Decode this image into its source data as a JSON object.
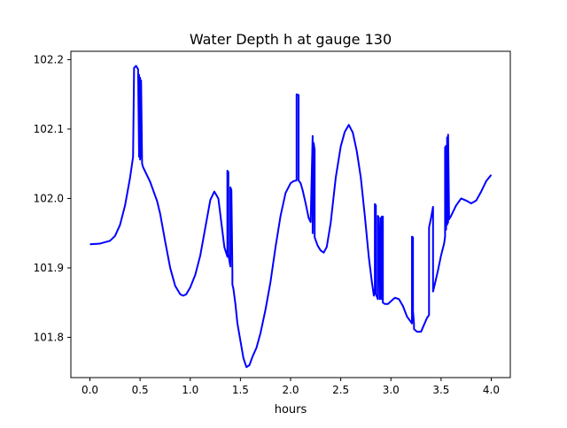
{
  "chart_data": {
    "type": "line",
    "title": "Water Depth h at gauge 130",
    "xlabel": "hours",
    "ylabel": "",
    "xlim": [
      -0.19,
      4.19
    ],
    "ylim": [
      101.742,
      102.212
    ],
    "xticks": [
      0.0,
      0.5,
      1.0,
      1.5,
      2.0,
      2.5,
      3.0,
      3.5,
      4.0
    ],
    "xtick_labels": [
      "0.0",
      "0.5",
      "1.0",
      "1.5",
      "2.0",
      "2.5",
      "3.0",
      "3.5",
      "4.0"
    ],
    "yticks": [
      101.8,
      101.9,
      102.0,
      102.1,
      102.2
    ],
    "ytick_labels": [
      "101.8",
      "101.9",
      "102.0",
      "102.1",
      "102.2"
    ],
    "grid": false,
    "legend": "none",
    "series": [
      {
        "color": "#0000ff",
        "x": [
          0.0,
          0.1,
          0.2,
          0.25,
          0.3,
          0.35,
          0.4,
          0.43,
          0.44,
          0.44,
          0.46,
          0.48,
          0.49,
          0.49,
          0.5,
          0.5,
          0.51,
          0.51,
          0.52,
          0.52,
          0.53,
          0.6,
          0.67,
          0.7,
          0.75,
          0.8,
          0.85,
          0.9,
          0.93,
          0.96,
          1.0,
          1.05,
          1.1,
          1.15,
          1.2,
          1.24,
          1.28,
          1.31,
          1.34,
          1.37,
          1.37,
          1.38,
          1.38,
          1.39,
          1.4,
          1.4,
          1.41,
          1.42,
          1.42,
          1.43,
          1.45,
          1.47,
          1.5,
          1.53,
          1.56,
          1.59,
          1.62,
          1.66,
          1.7,
          1.75,
          1.8,
          1.85,
          1.9,
          1.95,
          2.0,
          2.03,
          2.06,
          2.06,
          2.08,
          2.08,
          2.1,
          2.12,
          2.15,
          2.18,
          2.2,
          2.22,
          2.22,
          2.23,
          2.24,
          2.24,
          2.25,
          2.27,
          2.3,
          2.33,
          2.36,
          2.4,
          2.45,
          2.5,
          2.54,
          2.58,
          2.62,
          2.66,
          2.7,
          2.74,
          2.78,
          2.81,
          2.83,
          2.84,
          2.84,
          2.85,
          2.85,
          2.87,
          2.87,
          2.88,
          2.89,
          2.89,
          2.9,
          2.9,
          2.91,
          2.91,
          2.92,
          2.92,
          2.94,
          2.97,
          3.0,
          3.04,
          3.08,
          3.12,
          3.16,
          3.2,
          3.21,
          3.21,
          3.22,
          3.22,
          3.23,
          3.23,
          3.26,
          3.3,
          3.33,
          3.36,
          3.38,
          3.38,
          3.4,
          3.42,
          3.42,
          3.44,
          3.47,
          3.5,
          3.53,
          3.54,
          3.54,
          3.55,
          3.55,
          3.56,
          3.56,
          3.57,
          3.57,
          3.58,
          3.6,
          3.65,
          3.7,
          3.75,
          3.8,
          3.85,
          3.9,
          3.95,
          4.0
        ],
        "y": [
          101.934,
          101.935,
          101.939,
          101.946,
          101.962,
          101.99,
          102.03,
          102.06,
          102.188,
          102.188,
          102.191,
          102.186,
          102.06,
          102.178,
          102.056,
          102.174,
          102.06,
          102.17,
          102.05,
          102.05,
          102.045,
          102.024,
          101.996,
          101.978,
          101.938,
          101.9,
          101.874,
          101.862,
          101.86,
          101.862,
          101.872,
          101.89,
          101.918,
          101.958,
          101.998,
          102.01,
          102.0,
          101.965,
          101.93,
          101.916,
          102.04,
          102.038,
          101.92,
          101.91,
          101.902,
          102.016,
          102.012,
          101.895,
          101.876,
          101.87,
          101.848,
          101.82,
          101.795,
          101.77,
          101.757,
          101.76,
          101.772,
          101.785,
          101.806,
          101.84,
          101.88,
          101.93,
          101.975,
          102.008,
          102.022,
          102.025,
          102.026,
          102.15,
          102.149,
          102.026,
          102.022,
          102.012,
          101.993,
          101.972,
          101.966,
          102.09,
          101.95,
          102.08,
          102.07,
          101.944,
          101.94,
          101.932,
          101.925,
          101.922,
          101.93,
          101.965,
          102.03,
          102.075,
          102.096,
          102.106,
          102.095,
          102.068,
          102.03,
          101.975,
          101.915,
          101.88,
          101.86,
          101.87,
          101.992,
          101.99,
          101.862,
          101.855,
          101.975,
          101.972,
          101.855,
          101.855,
          101.972,
          101.856,
          101.855,
          101.974,
          101.974,
          101.85,
          101.848,
          101.848,
          101.852,
          101.857,
          101.855,
          101.845,
          101.83,
          101.822,
          101.82,
          101.945,
          101.944,
          101.838,
          101.82,
          101.812,
          101.808,
          101.808,
          101.818,
          101.828,
          101.832,
          101.958,
          101.972,
          101.988,
          101.866,
          101.878,
          101.897,
          101.918,
          101.935,
          101.945,
          102.074,
          101.955,
          102.076,
          101.962,
          102.088,
          101.965,
          102.092,
          101.97,
          101.975,
          101.99,
          102.0,
          101.997,
          101.993,
          101.997,
          102.01,
          102.025,
          102.034
        ]
      }
    ]
  }
}
